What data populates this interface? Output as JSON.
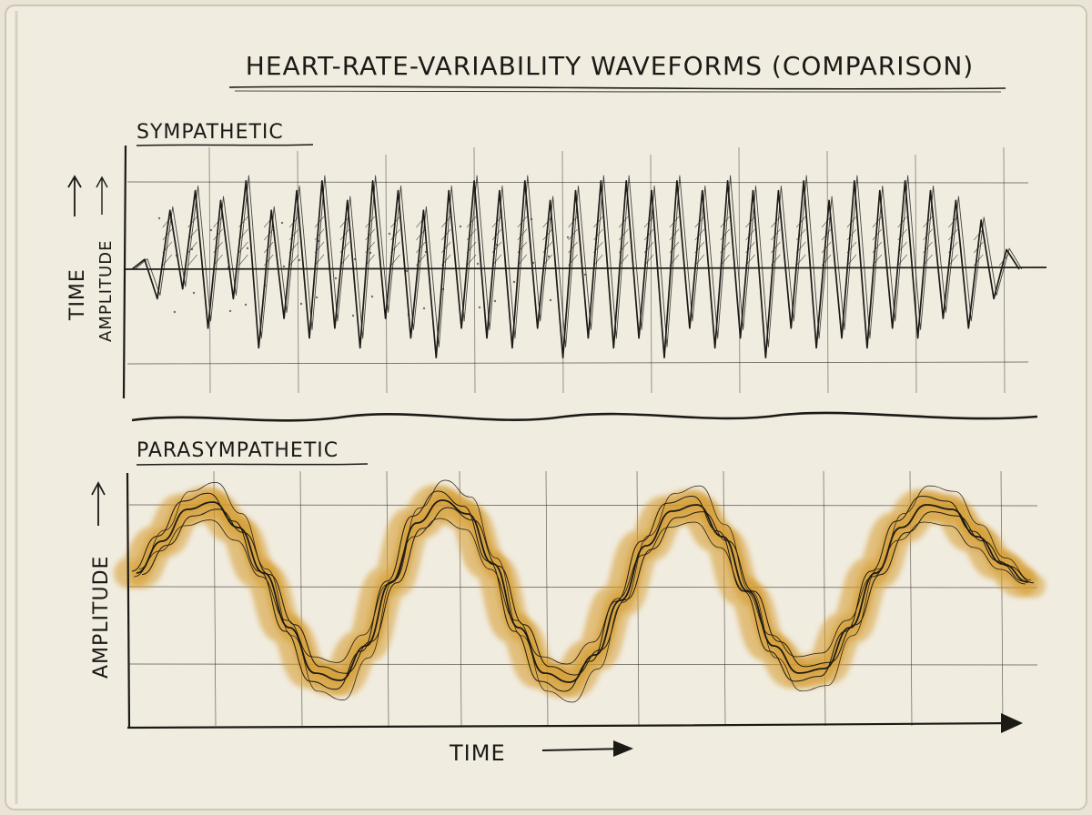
{
  "figure": {
    "title": "HEART-RATE-VARIABILITY WAVEFORMS (COMPARISON)"
  },
  "colors": {
    "paper": "#f0ebdf",
    "ink": "#1c1a16",
    "wash": "#d49a2a",
    "edge": "#cfc6b3"
  },
  "chart_data": [
    {
      "type": "line",
      "panel_label": "SYMPATHETIC",
      "xlabel": "",
      "ylabel": "AMPLITUDE",
      "ylabel_outer": "TIME",
      "series": [
        {
          "style": "ink",
          "x": [
            0,
            1,
            2,
            3,
            4,
            5,
            6,
            7,
            8,
            9,
            10,
            11,
            12,
            13,
            14,
            15,
            16,
            17,
            18,
            19,
            20,
            21,
            22,
            23,
            24,
            25,
            26,
            27,
            28,
            29,
            30,
            31,
            32,
            33,
            34,
            35,
            36,
            37,
            38,
            39,
            40,
            41,
            42,
            43,
            44,
            45,
            46,
            47,
            48,
            49,
            50,
            51,
            52,
            53,
            54,
            55,
            56,
            57,
            58,
            59,
            60,
            61,
            62,
            63,
            64,
            65,
            66,
            67,
            68,
            69,
            70
          ],
          "values": [
            0,
            0.1,
            -0.3,
            0.6,
            -0.2,
            0.8,
            -0.6,
            0.7,
            -0.3,
            0.9,
            -0.8,
            0.6,
            -0.5,
            0.8,
            -0.7,
            0.9,
            -0.6,
            0.7,
            -0.8,
            0.9,
            -0.5,
            0.8,
            -0.7,
            0.6,
            -0.9,
            0.8,
            -0.6,
            0.9,
            -0.7,
            0.8,
            -0.8,
            0.9,
            -0.6,
            0.7,
            -0.9,
            0.8,
            -0.7,
            0.9,
            -0.8,
            0.9,
            -0.7,
            0.8,
            -0.9,
            0.9,
            -0.6,
            0.8,
            -0.8,
            0.9,
            -0.7,
            0.8,
            -0.9,
            0.8,
            -0.6,
            0.9,
            -0.8,
            0.7,
            -0.7,
            0.9,
            -0.8,
            0.8,
            -0.6,
            0.9,
            -0.7,
            0.8,
            -0.5,
            0.7,
            -0.6,
            0.5,
            -0.3,
            0.2,
            0
          ]
        }
      ]
    },
    {
      "type": "line",
      "panel_label": "PARASYMPATHETIC",
      "xlabel": "TIME",
      "ylabel": "AMPLITUDE",
      "series": [
        {
          "style": "ink",
          "x": [
            0,
            2,
            4,
            6,
            8,
            10,
            12,
            14,
            16,
            18,
            20,
            22,
            24,
            26,
            28,
            30,
            32,
            34,
            36,
            38,
            40,
            42,
            44,
            46,
            48,
            50,
            52,
            54,
            56,
            58,
            60,
            62,
            64,
            66,
            68,
            70
          ],
          "values": [
            0.2,
            0.55,
            0.9,
            0.98,
            0.7,
            0.2,
            -0.4,
            -0.9,
            -0.98,
            -0.6,
            0.1,
            0.75,
            1.0,
            0.85,
            0.3,
            -0.4,
            -0.9,
            -1.0,
            -0.7,
            -0.1,
            0.5,
            0.88,
            0.95,
            0.6,
            0,
            -0.6,
            -0.9,
            -0.85,
            -0.4,
            0.2,
            0.7,
            0.95,
            0.9,
            0.6,
            0.3,
            0.1
          ]
        }
      ]
    }
  ]
}
